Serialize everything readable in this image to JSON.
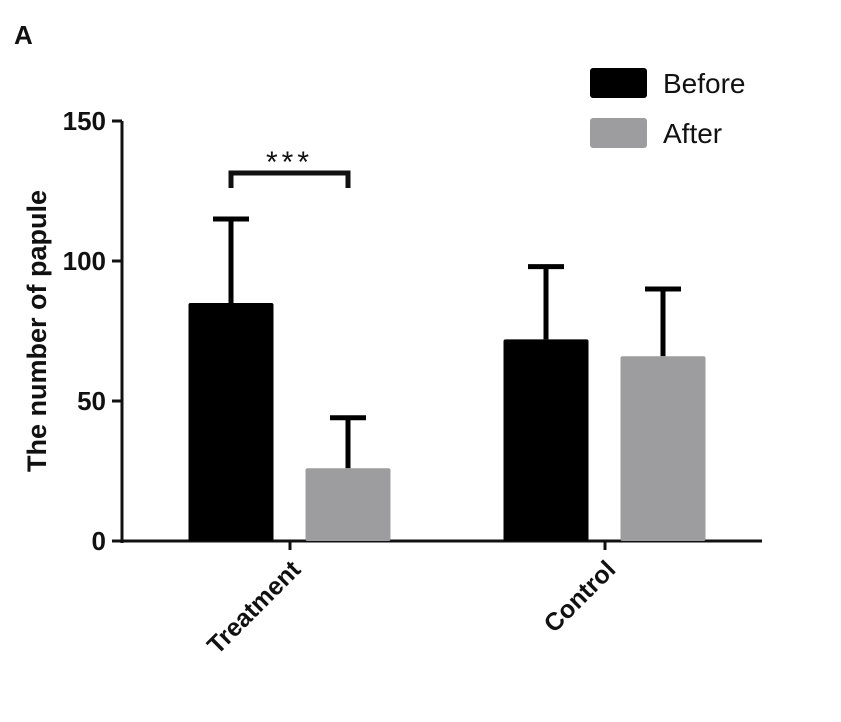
{
  "panel_label": "A",
  "chart_data": {
    "type": "bar",
    "title": "",
    "xlabel": "",
    "ylabel": "The number of papule",
    "ylim": [
      0,
      150
    ],
    "yticks": [
      0,
      50,
      100,
      150
    ],
    "categories": [
      "Treatment",
      "Control"
    ],
    "series": [
      {
        "name": "Before",
        "color": "#000000",
        "values": [
          85,
          72
        ],
        "error_upper": [
          115,
          98
        ]
      },
      {
        "name": "After",
        "color": "#9d9d9f",
        "values": [
          26,
          66
        ],
        "error_upper": [
          44,
          90
        ]
      }
    ],
    "legend_position": "top-right",
    "grid": false,
    "annotations": [
      {
        "text": "***",
        "between": [
          "Treatment Before",
          "Treatment After"
        ]
      }
    ]
  }
}
